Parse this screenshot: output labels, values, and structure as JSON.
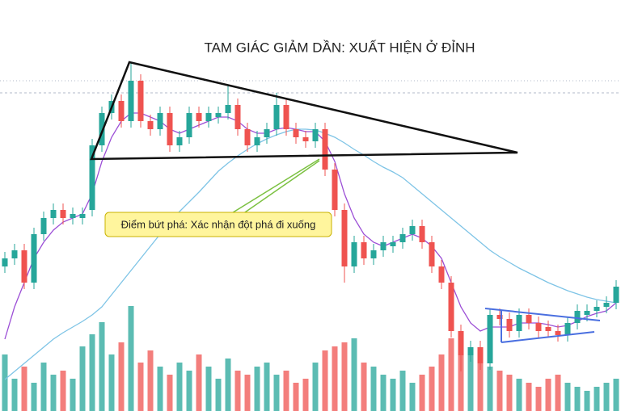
{
  "chart_data": {
    "type": "candlestick",
    "title": "TAM GIÁC GIẢM DẦN: XUẤT HIỆN Ở ĐỈNH",
    "annotation": "Điểm bứt phá: Xác nhận đột phá đi xuống",
    "ylim": [
      0,
      509
    ],
    "up_color": "#26a69a",
    "down_color": "#ef5350",
    "open": [
      179,
      189,
      199,
      159,
      219,
      239,
      249,
      239,
      239,
      249,
      329,
      369,
      384,
      359,
      409,
      359,
      349,
      369,
      329,
      339,
      369,
      359,
      364,
      369,
      379,
      349,
      329,
      339,
      349,
      379,
      349,
      339,
      334,
      349,
      299,
      249,
      179,
      209,
      189,
      199,
      204,
      209,
      219,
      229,
      209,
      179,
      159,
      99,
      69,
      79,
      59,
      119,
      114,
      99,
      119,
      109,
      104,
      99,
      94,
      109,
      119,
      124,
      129,
      134
    ],
    "high": [
      197,
      207,
      207,
      227,
      247,
      257,
      257,
      252,
      252,
      337,
      377,
      392,
      392,
      431,
      417,
      367,
      377,
      377,
      347,
      377,
      377,
      377,
      377,
      404,
      387,
      357,
      347,
      357,
      394,
      387,
      357,
      347,
      357,
      357,
      307,
      257,
      217,
      217,
      207,
      217,
      217,
      227,
      237,
      237,
      217,
      187,
      167,
      107,
      87,
      87,
      127,
      127,
      122,
      127,
      127,
      117,
      112,
      107,
      117,
      132,
      132,
      137,
      142,
      162
    ],
    "low": [
      171,
      181,
      151,
      151,
      211,
      231,
      231,
      231,
      231,
      241,
      321,
      361,
      351,
      351,
      351,
      341,
      341,
      321,
      321,
      331,
      351,
      351,
      356,
      361,
      341,
      321,
      321,
      331,
      341,
      341,
      331,
      326,
      326,
      291,
      241,
      159,
      171,
      181,
      181,
      191,
      196,
      201,
      211,
      201,
      171,
      151,
      91,
      49,
      61,
      51,
      51,
      106,
      91,
      91,
      101,
      91,
      91,
      86,
      86,
      101,
      111,
      116,
      121,
      126
    ],
    "close": [
      189,
      199,
      159,
      219,
      239,
      249,
      239,
      244,
      244,
      329,
      369,
      384,
      359,
      409,
      359,
      349,
      369,
      329,
      339,
      369,
      359,
      369,
      369,
      379,
      349,
      329,
      339,
      349,
      379,
      349,
      339,
      334,
      349,
      299,
      249,
      179,
      209,
      189,
      199,
      209,
      209,
      219,
      229,
      209,
      179,
      159,
      99,
      69,
      79,
      59,
      119,
      114,
      99,
      119,
      109,
      99,
      99,
      94,
      109,
      124,
      124,
      129,
      134,
      154
    ],
    "volume": [
      70,
      40,
      55,
      35,
      60,
      45,
      50,
      40,
      80,
      95,
      110,
      70,
      85,
      130,
      60,
      75,
      55,
      45,
      60,
      50,
      70,
      55,
      40,
      65,
      50,
      45,
      55,
      60,
      45,
      50,
      35,
      40,
      60,
      75,
      80,
      85,
      90,
      60,
      55,
      45,
      40,
      50,
      35,
      45,
      55,
      70,
      90,
      80,
      75,
      60,
      55,
      50,
      45,
      40,
      35,
      30,
      40,
      45,
      35,
      30,
      25,
      30,
      35,
      40
    ],
    "lines": [
      {
        "color": "#9c4fd6",
        "values": [
          89,
          129,
          159,
          189,
          209,
          224,
          234,
          239,
          244,
          269,
          309,
          339,
          359,
          369,
          369,
          364,
          359,
          349,
          344,
          349,
          354,
          359,
          364,
          364,
          359,
          349,
          344,
          344,
          349,
          351,
          349,
          346,
          346,
          334,
          309,
          269,
          239,
          219,
          209,
          204,
          209,
          214,
          219,
          214,
          204,
          189,
          159,
          129,
          109,
          99,
          104,
          104,
          104,
          109,
          109,
          109,
          107,
          104,
          106,
          111,
          117,
          121,
          124,
          134
        ]
      },
      {
        "color": "#7ec4e6",
        "values": [
          39,
          49,
          59,
          69,
          79,
          89,
          97,
          104,
          111,
          119,
          129,
          144,
          159,
          174,
          189,
          204,
          219,
          234,
          247,
          259,
          271,
          284,
          297,
          307,
          316,
          324,
          331,
          337,
          342,
          346,
          349,
          349,
          348,
          344,
          339,
          332,
          324,
          317,
          309,
          302,
          296,
          289,
          279,
          269,
          259,
          249,
          239,
          229,
          219,
          209,
          199,
          191,
          184,
          177,
          171,
          165,
          159,
          154,
          149,
          145,
          141,
          138,
          136,
          134
        ]
      }
    ]
  }
}
